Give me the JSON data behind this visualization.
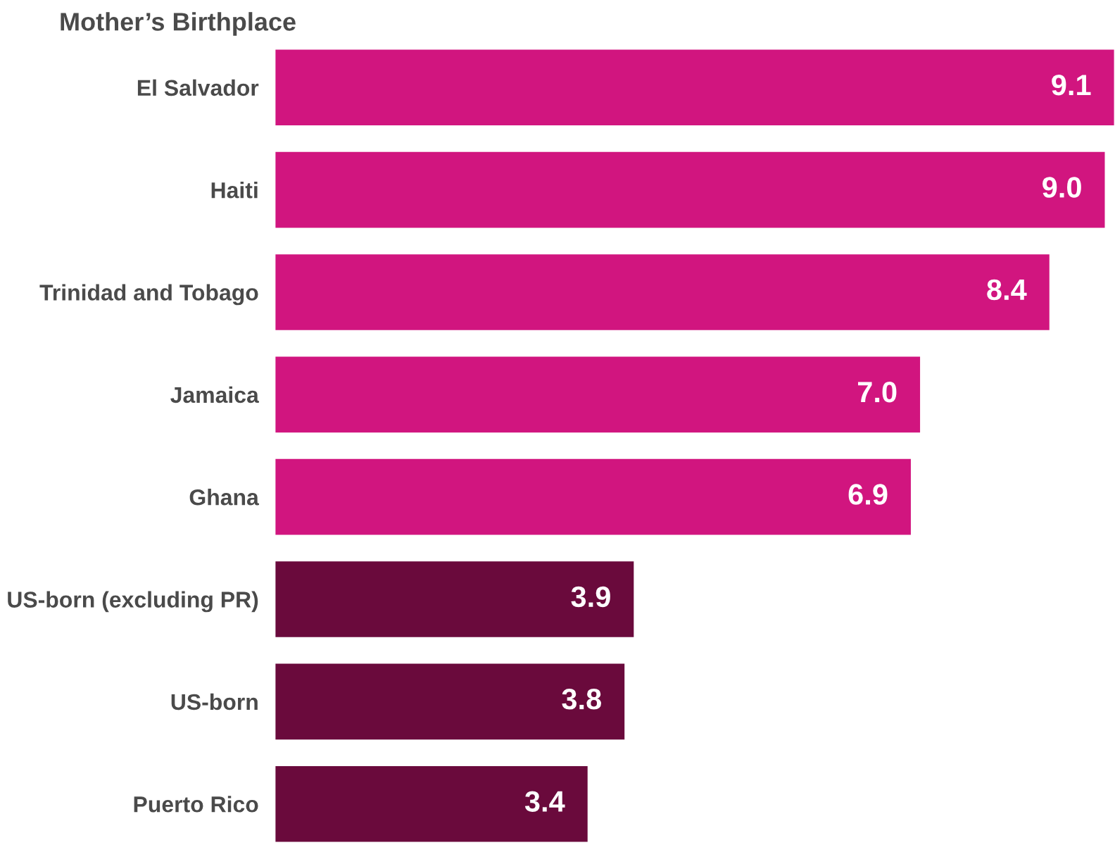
{
  "chart_data": {
    "type": "bar",
    "orientation": "horizontal",
    "ylabel": "Mother’s Birthplace",
    "categories": [
      "El Salvador",
      "Haiti",
      "Trinidad and Tobago",
      "Jamaica",
      "Ghana",
      "US-born (excluding PR)",
      "US-born",
      "Puerto Rico"
    ],
    "values": [
      9.1,
      9.0,
      8.4,
      7.0,
      6.9,
      3.9,
      3.8,
      3.4
    ],
    "colors": [
      "#d1157f",
      "#d1157f",
      "#d1157f",
      "#d1157f",
      "#d1157f",
      "#6a0a3c",
      "#6a0a3c",
      "#6a0a3c"
    ],
    "value_labels": [
      "9.1",
      "9.0",
      "8.4",
      "7.0",
      "6.9",
      "3.9",
      "3.8",
      "3.4"
    ],
    "grid": false,
    "legend": false
  }
}
